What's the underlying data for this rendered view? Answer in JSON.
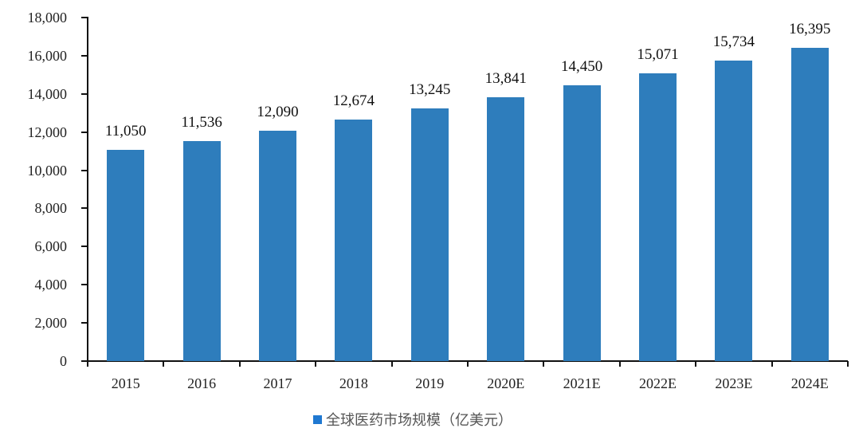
{
  "chart_data": {
    "type": "bar",
    "title": "",
    "xlabel": "",
    "ylabel": "",
    "categories": [
      "2015",
      "2016",
      "2017",
      "2018",
      "2019",
      "2020E",
      "2021E",
      "2022E",
      "2023E",
      "2024E"
    ],
    "series": [
      {
        "name": "全球医药市场规模（亿美元）",
        "color": "#2e7dbc",
        "values": [
          11050,
          11536,
          12090,
          12674,
          13245,
          13841,
          14450,
          15071,
          15734,
          16395
        ],
        "labels": [
          "11,050",
          "11,536",
          "12,090",
          "12,674",
          "13,245",
          "13,841",
          "14,450",
          "15,071",
          "15,734",
          "16,395"
        ]
      }
    ],
    "ylim": [
      0,
      18000
    ],
    "yticks": [
      0,
      2000,
      4000,
      6000,
      8000,
      10000,
      12000,
      14000,
      16000,
      18000
    ],
    "ytick_labels": [
      "0",
      "2,000",
      "4,000",
      "6,000",
      "8,000",
      "10,000",
      "12,000",
      "14,000",
      "16,000",
      "18,000"
    ],
    "grid": false,
    "legend_position": "bottom"
  },
  "legend": {
    "label": "全球医药市场规模（亿美元）",
    "color": "#1f78d1"
  }
}
